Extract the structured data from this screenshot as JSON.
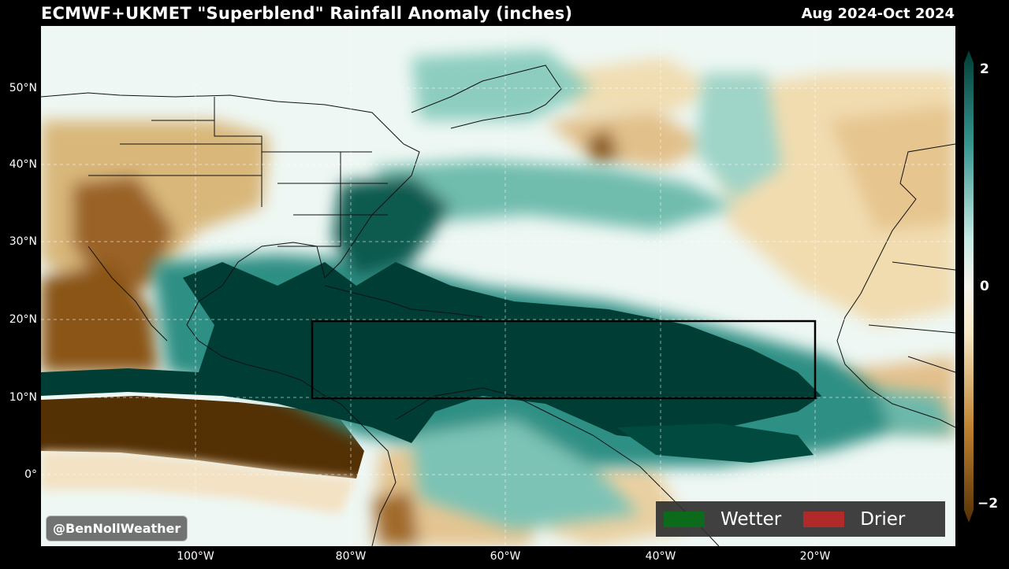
{
  "header": {
    "title": "ECMWF+UKMET \"Superblend\" Rainfall Anomaly (inches)",
    "period": "Aug 2024-Oct 2024"
  },
  "axes": {
    "lat_labels": [
      "50°N",
      "40°N",
      "30°N",
      "20°N",
      "10°N",
      "0°"
    ],
    "lon_labels": [
      "100°W",
      "80°W",
      "60°W",
      "40°W",
      "20°W"
    ]
  },
  "colorbar": {
    "max_label": "2",
    "mid_label": "0",
    "min_label": "−2",
    "wet_color": "#003d35",
    "dry_color": "#543005"
  },
  "legend": {
    "items": [
      {
        "label": "Wetter",
        "color": "#0b6b1a"
      },
      {
        "label": "Drier",
        "color": "#b02a2a"
      }
    ]
  },
  "watermark": "@BenNollWeather",
  "highlight_box": {
    "lon": [
      -85,
      -20
    ],
    "lat": [
      10,
      20
    ]
  }
}
